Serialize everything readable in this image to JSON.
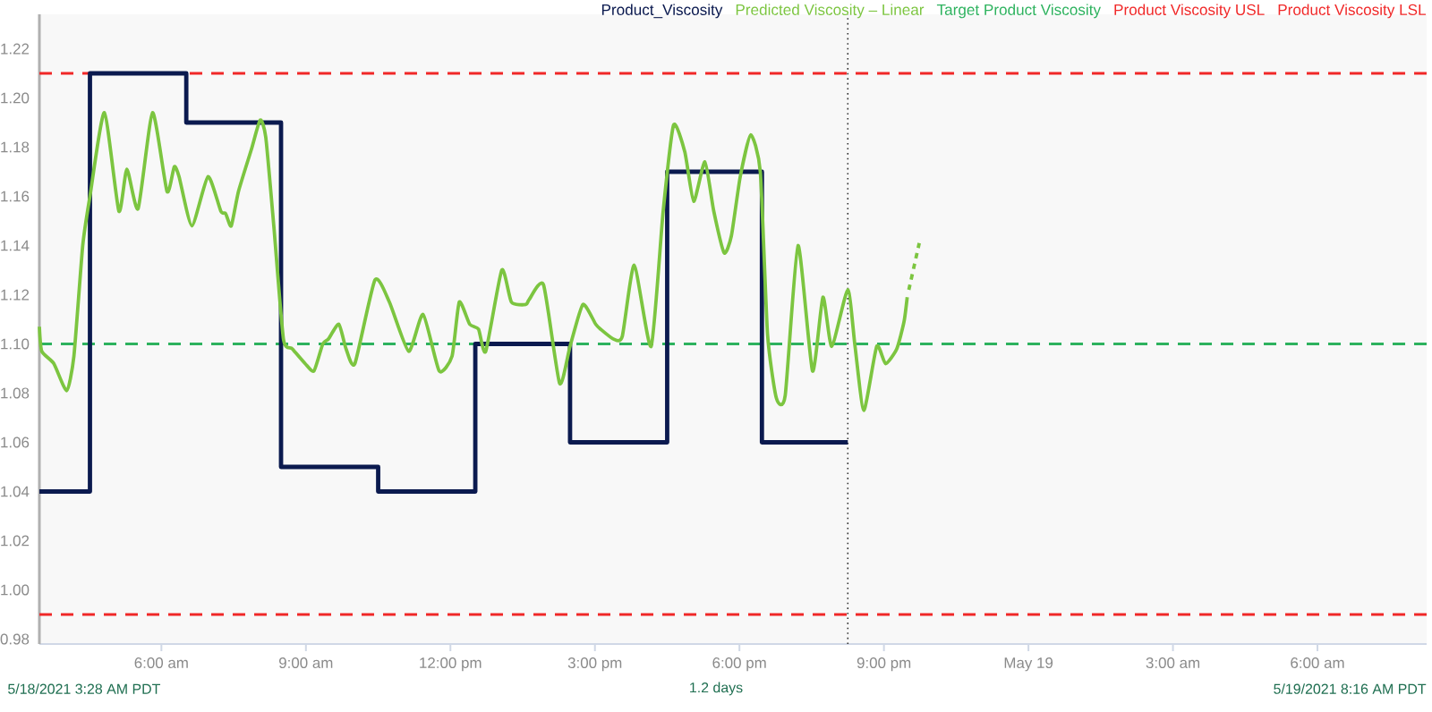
{
  "chart_data": {
    "type": "line",
    "xlim": [
      "2021-05-18T03:28",
      "2021-05-19T08:16"
    ],
    "ylim": [
      0.978,
      1.234
    ],
    "xticks": [
      {
        "value": "2021-05-18T06:00",
        "label": "6:00 am"
      },
      {
        "value": "2021-05-18T09:00",
        "label": "9:00 am"
      },
      {
        "value": "2021-05-18T12:00",
        "label": "12:00 pm"
      },
      {
        "value": "2021-05-18T15:00",
        "label": "3:00 pm"
      },
      {
        "value": "2021-05-18T18:00",
        "label": "6:00 pm"
      },
      {
        "value": "2021-05-18T21:00",
        "label": "9:00 pm"
      },
      {
        "value": "2021-05-19T00:00",
        "label": "May 19"
      },
      {
        "value": "2021-05-19T03:00",
        "label": "3:00 am"
      },
      {
        "value": "2021-05-19T06:00",
        "label": "6:00 am"
      }
    ],
    "yticks": [
      0.98,
      {
        "value": 1.0,
        "label": "1.00"
      },
      1.02,
      1.04,
      1.06,
      1.08,
      {
        "value": 1.1,
        "label": "1.10"
      },
      1.12,
      1.14,
      1.16,
      1.18,
      {
        "value": 1.2,
        "label": "1.20"
      },
      1.22
    ],
    "legend": "top right",
    "series": [
      {
        "name": "Product_Viscosity",
        "type": "step",
        "color": "#0b1a4f",
        "x": [
          "2021-05-18T03:28",
          "2021-05-18T04:31",
          "2021-05-18T06:31",
          "2021-05-18T08:29",
          "2021-05-18T10:30",
          "2021-05-18T12:31",
          "2021-05-18T14:29",
          "2021-05-18T16:30",
          "2021-05-18T18:28",
          "2021-05-18T20:15"
        ],
        "values": [
          1.04,
          1.21,
          1.19,
          1.05,
          1.04,
          1.1,
          1.06,
          1.17,
          1.06,
          1.06
        ]
      },
      {
        "name": "Predicted Viscosity – Linear",
        "color": "#7cc540",
        "x": [
          "2021-05-18T03:28",
          "2021-05-18T03:31",
          "2021-05-18T03:46",
          "2021-05-18T04:02",
          "2021-05-18T04:11",
          "2021-05-18T04:22",
          "2021-05-18T04:31",
          "2021-05-18T04:49",
          "2021-05-18T05:07",
          "2021-05-18T05:17",
          "2021-05-18T05:31",
          "2021-05-18T05:49",
          "2021-05-18T06:07",
          "2021-05-18T06:16",
          "2021-05-18T06:22",
          "2021-05-18T06:38",
          "2021-05-18T06:58",
          "2021-05-18T07:14",
          "2021-05-18T07:20",
          "2021-05-18T07:27",
          "2021-05-18T07:36",
          "2021-05-18T07:52",
          "2021-05-18T08:03",
          "2021-05-18T08:10",
          "2021-05-18T08:20",
          "2021-05-18T08:32",
          "2021-05-18T08:43",
          "2021-05-18T08:59",
          "2021-05-18T09:10",
          "2021-05-18T09:21",
          "2021-05-18T09:28",
          "2021-05-18T09:41",
          "2021-05-18T09:50",
          "2021-05-18T10:01",
          "2021-05-18T10:26",
          "2021-05-18T10:44",
          "2021-05-18T11:08",
          "2021-05-18T11:26",
          "2021-05-18T11:46",
          "2021-05-18T12:02",
          "2021-05-18T12:11",
          "2021-05-18T12:24",
          "2021-05-18T12:35",
          "2021-05-18T12:44",
          "2021-05-18T13:04",
          "2021-05-18T13:16",
          "2021-05-18T13:34",
          "2021-05-18T13:38",
          "2021-05-18T13:56",
          "2021-05-18T14:16",
          "2021-05-18T14:29",
          "2021-05-18T14:45",
          "2021-05-18T15:01",
          "2021-05-18T15:07",
          "2021-05-18T15:23",
          "2021-05-18T15:34",
          "2021-05-18T15:49",
          "2021-05-18T16:10",
          "2021-05-18T16:25",
          "2021-05-18T16:38",
          "2021-05-18T16:52",
          "2021-05-18T17:03",
          "2021-05-18T17:17",
          "2021-05-18T17:28",
          "2021-05-18T17:41",
          "2021-05-18T17:50",
          "2021-05-18T18:01",
          "2021-05-18T18:14",
          "2021-05-18T18:26",
          "2021-05-18T18:35",
          "2021-05-18T18:46",
          "2021-05-18T18:57",
          "2021-05-18T19:13",
          "2021-05-18T19:31",
          "2021-05-18T19:44",
          "2021-05-18T19:55",
          "2021-05-18T20:15",
          "2021-05-18T20:24",
          "2021-05-18T20:35",
          "2021-05-18T20:51",
          "2021-05-18T21:02",
          "2021-05-18T21:16",
          "2021-05-18T21:25",
          "2021-05-18T21:29"
        ],
        "values": [
          1.107,
          1.097,
          1.092,
          1.081,
          1.095,
          1.14,
          1.16,
          1.194,
          1.154,
          1.171,
          1.155,
          1.194,
          1.162,
          1.172,
          1.168,
          1.148,
          1.168,
          1.154,
          1.153,
          1.148,
          1.162,
          1.179,
          1.191,
          1.184,
          1.148,
          1.102,
          1.098,
          1.092,
          1.089,
          1.1,
          1.102,
          1.108,
          1.098,
          1.092,
          1.126,
          1.117,
          1.097,
          1.112,
          1.089,
          1.095,
          1.117,
          1.108,
          1.106,
          1.097,
          1.13,
          1.117,
          1.116,
          1.118,
          1.124,
          1.084,
          1.099,
          1.116,
          1.108,
          1.106,
          1.102,
          1.103,
          1.132,
          1.099,
          1.154,
          1.189,
          1.178,
          1.158,
          1.174,
          1.154,
          1.137,
          1.144,
          1.168,
          1.185,
          1.17,
          1.104,
          1.078,
          1.079,
          1.14,
          1.089,
          1.119,
          1.099,
          1.122,
          1.099,
          1.073,
          1.099,
          1.092,
          1.098,
          1.109,
          1.119
        ]
      },
      {
        "line_style": "dashed",
        "color": "#7cc540",
        "x": [
          "2021-05-18T21:31",
          "2021-05-18T21:44"
        ],
        "values": [
          1.122,
          1.141
        ]
      }
    ],
    "ref_lines": [
      {
        "axis": "y",
        "value": 1.1,
        "label": "Target Product Viscosity",
        "color": "#2db25e",
        "line_style": "dashed"
      },
      {
        "axis": "y",
        "value": 1.21,
        "label": "Product Viscosity USL",
        "color": "#f02828",
        "line_style": "dashed"
      },
      {
        "axis": "y",
        "value": 0.99,
        "label": "Product Viscosity LSL",
        "color": "#f02828",
        "line_style": "dashed"
      },
      {
        "axis": "x",
        "value": "2021-05-18T20:15",
        "color": "#333333",
        "line_style": "dotted"
      }
    ],
    "annotations": [
      "5/18/2021 3:28 AM PDT",
      "1.2 days",
      "5/19/2021 8:16 AM PDT"
    ]
  }
}
